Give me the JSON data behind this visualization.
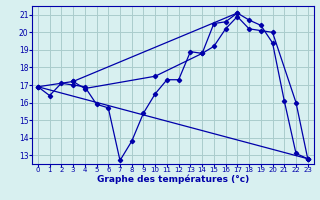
{
  "xlabel": "Graphe des températures (°c)",
  "bg_color": "#d8f0f0",
  "line_color": "#0000aa",
  "grid_color": "#aacccc",
  "xlim": [
    -0.5,
    23.5
  ],
  "ylim": [
    12.5,
    21.5
  ],
  "xticks": [
    0,
    1,
    2,
    3,
    4,
    5,
    6,
    7,
    8,
    9,
    10,
    11,
    12,
    13,
    14,
    15,
    16,
    17,
    18,
    19,
    20,
    21,
    22,
    23
  ],
  "yticks": [
    13,
    14,
    15,
    16,
    17,
    18,
    19,
    20,
    21
  ],
  "series": [
    {
      "x": [
        0,
        1,
        2,
        3,
        4,
        5,
        6,
        7,
        8,
        9,
        10,
        11,
        12,
        13,
        14,
        15,
        16,
        17,
        18,
        19,
        20,
        21,
        22,
        23
      ],
      "y": [
        16.9,
        16.4,
        17.1,
        17.0,
        16.9,
        15.9,
        15.7,
        12.7,
        13.8,
        15.4,
        16.5,
        17.3,
        17.3,
        18.9,
        18.8,
        20.5,
        20.6,
        21.1,
        20.7,
        20.4,
        19.4,
        16.1,
        13.1,
        12.8
      ]
    },
    {
      "x": [
        0,
        3,
        4,
        10,
        14,
        15,
        16,
        17,
        18,
        19,
        20,
        22,
        23
      ],
      "y": [
        16.9,
        17.2,
        16.8,
        17.5,
        18.8,
        19.2,
        20.2,
        20.9,
        20.2,
        20.1,
        20.0,
        16.0,
        12.8
      ]
    },
    {
      "x": [
        0,
        23
      ],
      "y": [
        16.9,
        12.8
      ]
    },
    {
      "x": [
        3,
        17
      ],
      "y": [
        17.2,
        21.1
      ]
    }
  ]
}
